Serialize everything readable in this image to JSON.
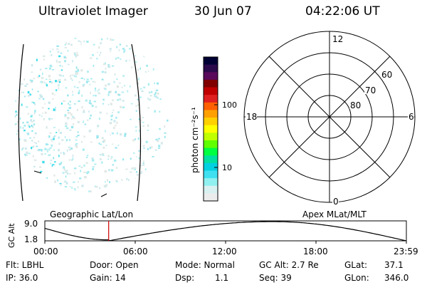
{
  "header": {
    "title": "Ultraviolet Imager",
    "date": "30 Jun 07",
    "time": "04:22:06 UT"
  },
  "colorbar": {
    "unit_label": "photon cm⁻²s⁻¹",
    "ticks": [
      "100",
      "10"
    ],
    "colors": [
      "#000033",
      "#2a0a4a",
      "#5a0a5a",
      "#800000",
      "#c00000",
      "#e02020",
      "#ff6000",
      "#ffa000",
      "#ffd000",
      "#ffff00",
      "#c0ff00",
      "#60ff00",
      "#00ff40",
      "#00e0a0",
      "#00d0e0",
      "#40e0f0",
      "#90f0f0",
      "#d8f0f0",
      "#ececec"
    ]
  },
  "polar": {
    "mlt_labels": {
      "top": "12",
      "left": "18",
      "right": "6",
      "bottom": "0"
    },
    "lat_labels": [
      "60",
      "70",
      "80"
    ]
  },
  "timeline": {
    "ylabel": "GC Alt",
    "ytick_top": "9.0",
    "ytick_bottom": "1.8",
    "left_title": "Geographic Lat/Lon",
    "right_title": "Apex MLat/MLT",
    "xticks": [
      "00:00",
      "06:00",
      "12:00",
      "18:00",
      "23:59"
    ],
    "marker_fraction": 0.1765
  },
  "info": {
    "flt": "Flt: LBHL",
    "ip": "IP: 36.0",
    "door": "Door: Open",
    "gain": "Gain: 14",
    "mode": "Mode: Normal",
    "dsp_label": "Dsp:",
    "dsp_value": "1.1",
    "gcalt": "GC Alt: 2.7 Re",
    "seq": "Seq: 39",
    "glat_label": "GLat:",
    "glat_value": "37.1",
    "glon_label": "GLon:",
    "glon_value": "346.0"
  }
}
